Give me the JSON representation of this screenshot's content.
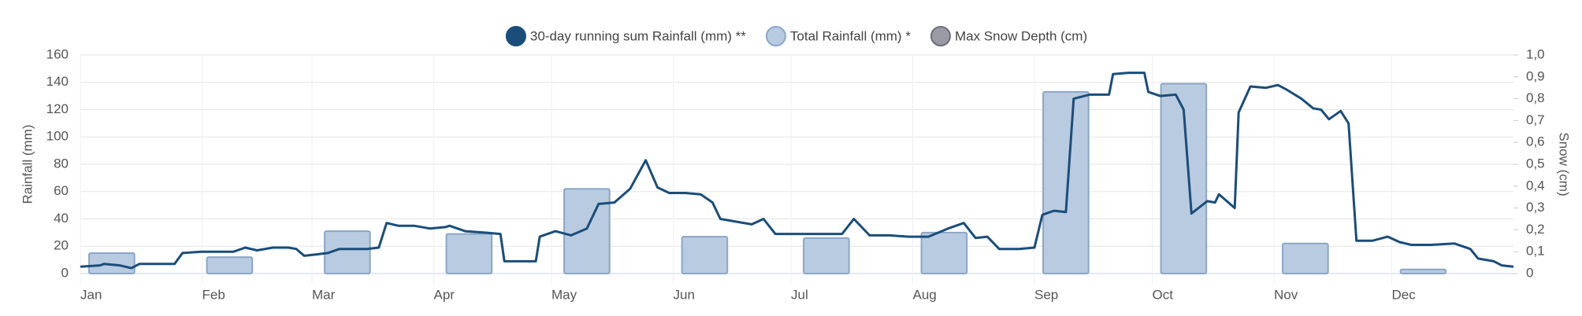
{
  "chart_data": {
    "type": "combo",
    "y_label": "Rainfall (mm)",
    "y2_label": "Snow (cm)",
    "xlim": [
      0,
      365
    ],
    "xticks": [
      {
        "value": 0,
        "label": "Jan"
      },
      {
        "value": 31,
        "label": "Feb"
      },
      {
        "value": 59,
        "label": "Mar"
      },
      {
        "value": 90,
        "label": "Apr"
      },
      {
        "value": 120,
        "label": "May"
      },
      {
        "value": 151,
        "label": "Jun"
      },
      {
        "value": 181,
        "label": "Jul"
      },
      {
        "value": 212,
        "label": "Aug"
      },
      {
        "value": 243,
        "label": "Sep"
      },
      {
        "value": 273,
        "label": "Oct"
      },
      {
        "value": 304,
        "label": "Nov"
      },
      {
        "value": 334,
        "label": "Dec"
      }
    ],
    "ylim": [
      0,
      160
    ],
    "yticks": [
      0,
      20,
      40,
      60,
      80,
      100,
      120,
      140,
      160
    ],
    "y2lim": [
      0,
      1
    ],
    "y2ticks": [
      0,
      {
        "value": 0.1,
        "label": "0,1"
      },
      {
        "value": 0.2,
        "label": "0,2"
      },
      {
        "value": 0.3,
        "label": "0,3"
      },
      {
        "value": 0.4,
        "label": "0,4"
      },
      {
        "value": 0.5,
        "label": "0,5"
      },
      {
        "value": 0.6,
        "label": "0,6"
      },
      {
        "value": 0.7,
        "label": "0,7"
      },
      {
        "value": 0.8,
        "label": "0,8"
      },
      {
        "value": 0.9,
        "label": "0,9"
      },
      {
        "value": 1,
        "label": "1,0"
      }
    ],
    "grid": true,
    "legend": "top",
    "series": [
      {
        "name": "30-day running sum Rainfall (mm) **",
        "type": "line",
        "color": "#1a4d7a",
        "x": [
          0,
          5,
          6,
          10,
          13,
          15,
          21,
          24,
          26,
          31,
          35,
          39,
          42,
          45,
          49,
          53,
          55,
          57,
          60,
          63,
          66,
          69,
          73,
          76,
          78,
          81,
          85,
          89,
          93,
          94,
          98,
          103,
          107,
          108,
          113,
          116,
          117,
          121,
          125,
          129,
          132,
          136,
          140,
          144,
          147,
          150,
          154,
          158,
          161,
          163,
          167,
          171,
          174,
          177,
          183,
          186,
          190,
          194,
          197,
          201,
          206,
          211,
          216,
          221,
          225,
          228,
          231,
          234,
          239,
          243,
          245,
          248,
          251,
          253,
          257,
          262,
          263,
          267,
          271,
          272,
          275,
          279,
          281,
          283,
          287,
          289,
          290,
          294,
          295,
          298,
          302,
          305,
          307,
          311,
          314,
          316,
          318,
          321,
          323,
          325,
          329,
          333,
          336,
          339,
          344,
          350,
          354,
          356,
          360,
          362,
          365
        ],
        "values": [
          5,
          6,
          7,
          6,
          4,
          7,
          7,
          7,
          15,
          16,
          16,
          16,
          19,
          17,
          19,
          19,
          18,
          13,
          14,
          15,
          18,
          18,
          18,
          19,
          37,
          35,
          35,
          33,
          34,
          35,
          31,
          30,
          29,
          9,
          9,
          9,
          27,
          31,
          28,
          33,
          51,
          52,
          62,
          83,
          63,
          59,
          59,
          58,
          52,
          40,
          38,
          36,
          40,
          29,
          29,
          29,
          29,
          29,
          40,
          28,
          28,
          27,
          27,
          33,
          37,
          26,
          27,
          18,
          18,
          19,
          43,
          46,
          45,
          128,
          131,
          131,
          146,
          147,
          147,
          133,
          130,
          131,
          120,
          44,
          53,
          52,
          58,
          48,
          118,
          137,
          136,
          138,
          135,
          128,
          121,
          120,
          113,
          119,
          110,
          24,
          24,
          27,
          23,
          21,
          21,
          22,
          18,
          11,
          9,
          6,
          5
        ]
      },
      {
        "name": "Total Rainfall (mm) *",
        "type": "column",
        "color": "#b9cbe0",
        "edge": "#8aa6c6",
        "x": [
          8,
          38,
          68,
          99,
          129,
          159,
          190,
          220,
          251,
          281,
          312,
          342
        ],
        "values": [
          15,
          12,
          31,
          29,
          62,
          27,
          26,
          30,
          133,
          139,
          22,
          3
        ]
      },
      {
        "name": "Max Snow Depth (cm)",
        "type": "line",
        "axis": "y2",
        "color": "#9a9aa6",
        "x": [],
        "values": []
      }
    ]
  }
}
